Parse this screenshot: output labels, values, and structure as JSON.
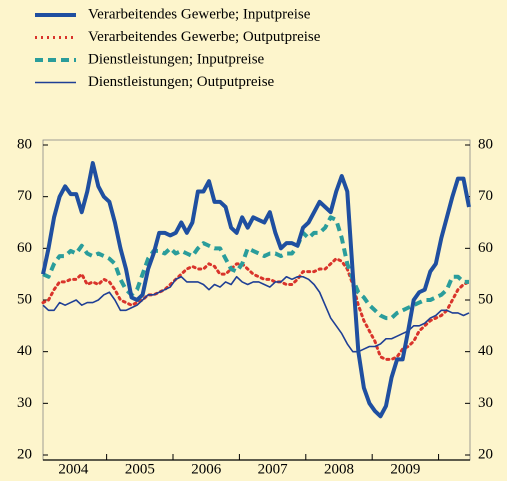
{
  "chart_data": {
    "type": "line",
    "categories": [
      null,
      null,
      null,
      null,
      null,
      null,
      "2004",
      null,
      null,
      null,
      null,
      null,
      null,
      null,
      null,
      null,
      null,
      null,
      "2005",
      null,
      null,
      null,
      null,
      null,
      null,
      null,
      null,
      null,
      null,
      null,
      "2006",
      null,
      null,
      null,
      null,
      null,
      null,
      null,
      null,
      null,
      null,
      null,
      "2007",
      null,
      null,
      null,
      null,
      null,
      null,
      null,
      null,
      null,
      null,
      null,
      "2008",
      null,
      null,
      null,
      null,
      null,
      null,
      null,
      null,
      null,
      null,
      null,
      "2009",
      null,
      null,
      null,
      null,
      null,
      null,
      null,
      null,
      null,
      null,
      null
    ],
    "series": [
      {
        "name": "Verarbeitendes Gewerbe; Inputpreise",
        "color": "#1f4fa0",
        "line_style": "solid",
        "line_width": 4,
        "values": [
          55,
          60,
          66,
          70,
          72,
          70.5,
          70.5,
          67,
          71,
          76.5,
          72,
          70,
          69,
          65,
          60,
          56,
          50.5,
          50,
          51,
          56,
          59,
          63,
          63,
          62.5,
          63,
          65,
          63,
          65,
          71,
          71,
          73,
          69,
          69,
          68,
          64,
          63,
          66,
          64,
          66,
          65.5,
          65,
          67,
          63,
          60,
          61,
          61,
          60.5,
          64,
          65,
          67,
          69,
          68,
          67,
          71,
          74,
          71,
          55,
          40,
          33,
          30,
          28.5,
          27.5,
          29.5,
          35,
          38.5,
          38.5,
          44,
          50,
          51.5,
          52,
          55.5,
          57,
          62,
          66,
          70,
          73.5,
          73.5,
          68
        ]
      },
      {
        "name": "Verarbeitendes Gewerbe; Outputpreise",
        "color": "#d9342b",
        "line_style": "dotted",
        "line_width": 3,
        "values": [
          49.5,
          50,
          52,
          53.5,
          53.5,
          54,
          54,
          55,
          53,
          53.5,
          53,
          54,
          53.5,
          52,
          50,
          49.5,
          49,
          49.5,
          50,
          51,
          51,
          51.5,
          52,
          53,
          54,
          55,
          56,
          56.5,
          56,
          56,
          57,
          56.5,
          55,
          55,
          56,
          57,
          57,
          56,
          55,
          54.5,
          54,
          54,
          53.5,
          53.5,
          53,
          53,
          54,
          55.5,
          55.5,
          55.5,
          56,
          56,
          57,
          58,
          57.5,
          56,
          53,
          49,
          46,
          44,
          42,
          39,
          38.5,
          38.5,
          39,
          40.5,
          41,
          42,
          44,
          45,
          46,
          46.5,
          47,
          48,
          50,
          52,
          53,
          53.5
        ]
      },
      {
        "name": "Dienstleistungen; Inputpreise",
        "color": "#2a9d9b",
        "line_style": "dashed",
        "line_width": 4,
        "values": [
          55,
          54.5,
          57,
          58.5,
          58.5,
          59.5,
          59,
          60.5,
          59,
          58.5,
          59,
          58.5,
          58,
          57,
          54,
          52,
          51,
          52,
          55,
          58,
          59.5,
          59.5,
          59,
          60,
          59,
          59.5,
          59,
          58.5,
          60,
          61,
          60.5,
          60,
          60,
          58,
          56,
          55.5,
          57,
          60,
          59.5,
          59,
          58.5,
          59,
          59,
          58.5,
          59,
          59,
          60.5,
          63,
          62,
          63,
          63,
          64,
          66,
          65.5,
          62,
          57,
          54,
          51.5,
          50.5,
          49,
          48,
          47,
          46.5,
          46.5,
          47.5,
          48,
          48.5,
          49,
          49.5,
          50,
          50,
          50.5,
          51,
          52,
          54.5,
          54.5,
          53.5,
          53.5
        ]
      },
      {
        "name": "Dienstleistungen; Outputpreise",
        "color": "#1f3f95",
        "line_style": "solid",
        "line_width": 1.6,
        "values": [
          49,
          48,
          48,
          49.5,
          49,
          49.5,
          50,
          49,
          49.5,
          49.5,
          50,
          51,
          51.5,
          50,
          48,
          48,
          48.5,
          49,
          50,
          51,
          51,
          51.5,
          52,
          52.5,
          54,
          54.5,
          53.5,
          53.5,
          53.5,
          53,
          52,
          53,
          52.5,
          53.5,
          53,
          54.5,
          53.5,
          53,
          53.5,
          53.5,
          53,
          52.5,
          53.5,
          53.5,
          54.5,
          54,
          54.5,
          54.5,
          54,
          53,
          51.5,
          49,
          46.5,
          45,
          43.5,
          41.5,
          40,
          40,
          40.5,
          41,
          41,
          41.5,
          42.5,
          42.5,
          43,
          43.5,
          44,
          45,
          45,
          45.5,
          46.5,
          47,
          48,
          48,
          47.5,
          47.5,
          47,
          47.5
        ]
      }
    ],
    "ylim": [
      20,
      80
    ],
    "yticks": [
      20,
      30,
      40,
      50,
      60,
      70,
      80
    ],
    "y2lim": [
      20,
      80
    ],
    "y2ticks": [
      20,
      30,
      40,
      50,
      60,
      70,
      80
    ],
    "grid": false,
    "legend": "top"
  }
}
